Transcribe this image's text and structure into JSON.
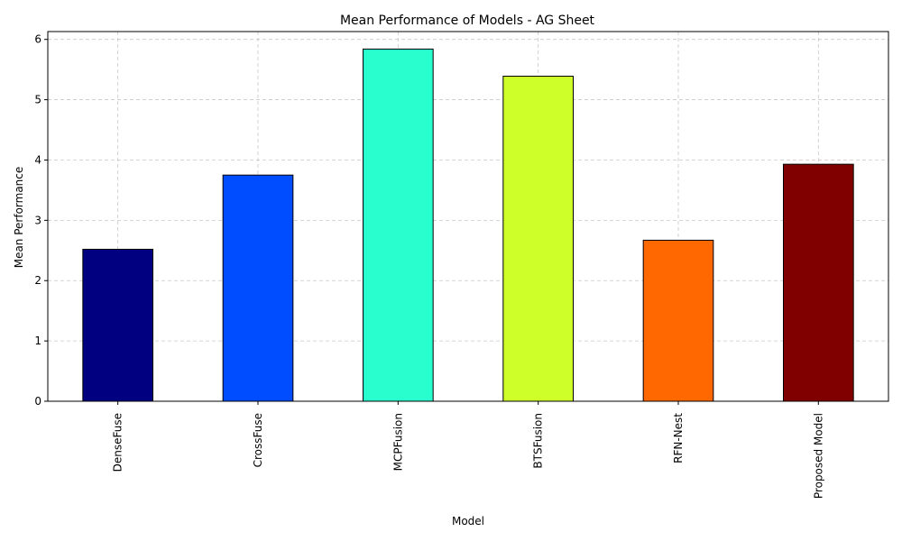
{
  "chart_data": {
    "type": "bar",
    "title": "Mean Performance of Models - AG Sheet",
    "xlabel": "Model",
    "ylabel": "Mean Performance",
    "categories": [
      "DenseFuse",
      "CrossFuse",
      "MCPFusion",
      "BTSFusion",
      "RFN-Nest",
      "Proposed Model"
    ],
    "values": [
      2.52,
      3.75,
      5.84,
      5.39,
      2.67,
      3.93
    ],
    "colors": [
      "#000080",
      "#004cff",
      "#29ffce",
      "#ceff29",
      "#ff6800",
      "#800000"
    ],
    "ylim": [
      0,
      6.13
    ],
    "yticks": [
      0,
      1,
      2,
      3,
      4,
      5,
      6
    ],
    "grid": true,
    "legend": "none"
  }
}
